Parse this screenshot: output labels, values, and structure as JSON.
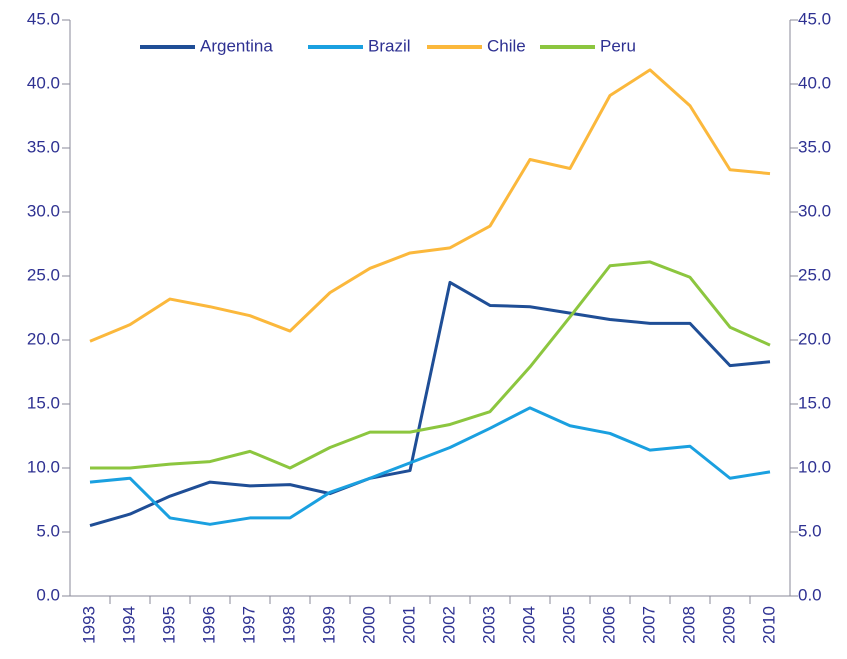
{
  "chart_data": {
    "type": "line",
    "categories": [
      "1993",
      "1994",
      "1995",
      "1996",
      "1997",
      "1998",
      "1999",
      "2000",
      "2001",
      "2002",
      "2003",
      "2004",
      "2005",
      "2006",
      "2007",
      "2008",
      "2009",
      "2010"
    ],
    "series": [
      {
        "name": "Argentina",
        "color": "#1f4e96",
        "values": [
          5.5,
          6.4,
          7.8,
          8.9,
          8.6,
          8.7,
          8.0,
          9.2,
          9.8,
          24.5,
          22.7,
          22.6,
          22.1,
          21.6,
          21.3,
          21.3,
          18.0,
          18.3
        ]
      },
      {
        "name": "Brazil",
        "color": "#1aa0e0",
        "values": [
          8.9,
          9.2,
          6.1,
          5.6,
          6.1,
          6.1,
          8.1,
          9.2,
          10.4,
          11.6,
          13.1,
          14.7,
          13.3,
          12.7,
          11.4,
          11.7,
          9.2,
          9.7
        ]
      },
      {
        "name": "Chile",
        "color": "#fbb83c",
        "values": [
          19.9,
          21.2,
          23.2,
          22.6,
          21.9,
          20.7,
          23.7,
          25.6,
          26.8,
          27.2,
          28.9,
          34.1,
          33.4,
          39.1,
          41.1,
          38.3,
          33.3,
          33.0
        ]
      },
      {
        "name": "Peru",
        "color": "#8cc63f",
        "values": [
          10.0,
          10.0,
          10.3,
          10.5,
          11.3,
          10.0,
          11.6,
          12.8,
          12.8,
          13.4,
          14.4,
          17.9,
          21.8,
          25.8,
          26.1,
          24.9,
          21.0,
          19.6
        ]
      }
    ],
    "ylim": [
      0,
      45
    ],
    "yticks": [
      {
        "value": 0,
        "label": "0.0"
      },
      {
        "value": 5,
        "label": "5.0"
      },
      {
        "value": 10,
        "label": "10.0"
      },
      {
        "value": 15,
        "label": "15.0"
      },
      {
        "value": 20,
        "label": "20.0"
      },
      {
        "value": 25,
        "label": "25.0"
      },
      {
        "value": 30,
        "label": "30.0"
      },
      {
        "value": 35,
        "label": "35.0"
      },
      {
        "value": 40,
        "label": "40.0"
      },
      {
        "value": 45,
        "label": "45.0"
      }
    ],
    "y2lim": [
      0,
      45
    ],
    "y2ticks": [
      {
        "value": 0,
        "label": "0.0"
      },
      {
        "value": 5,
        "label": "5.0"
      },
      {
        "value": 10,
        "label": "10.0"
      },
      {
        "value": 15,
        "label": "15.0"
      },
      {
        "value": 20,
        "label": "20.0"
      },
      {
        "value": 25,
        "label": "25.0"
      },
      {
        "value": 30,
        "label": "30.0"
      },
      {
        "value": 35,
        "label": "35.0"
      },
      {
        "value": 40,
        "label": "40.0"
      },
      {
        "value": 45,
        "label": "45.0"
      }
    ],
    "legend": "top",
    "grid": false
  }
}
